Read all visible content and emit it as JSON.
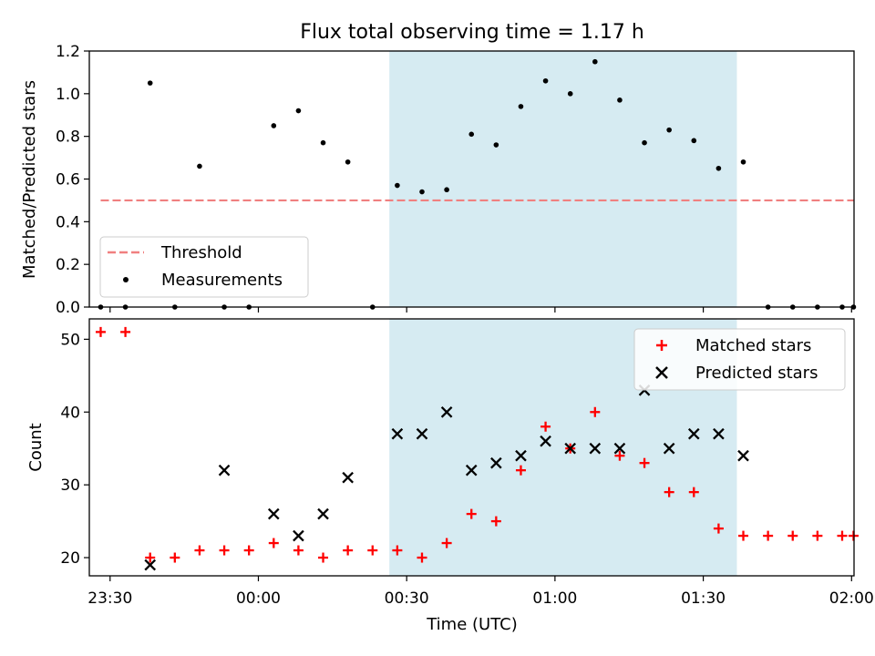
{
  "figure": {
    "title": "Flux total observing time = 1.17 h",
    "xlabel": "Time (UTC)",
    "x_ticks": [
      "23:30",
      "00:00",
      "00:30",
      "01:00",
      "01:30",
      "02:00"
    ],
    "x_tick_minutes": [
      -30,
      0,
      30,
      60,
      90,
      120
    ],
    "x_range_minutes": [
      -34.2,
      120.5
    ],
    "shaded_span_minutes": [
      26.5,
      96.8
    ],
    "shade_color": "#add8e6"
  },
  "chart_data": [
    {
      "type": "scatter",
      "title": "Flux total observing time = 1.17 h",
      "ylabel": "Matched/Predicted stars",
      "ylim": [
        0,
        1.2
      ],
      "y_ticks": [
        "0.0",
        "0.2",
        "0.4",
        "0.6",
        "0.8",
        "1.0",
        "1.2"
      ],
      "y_tick_values": [
        0,
        0.2,
        0.4,
        0.6,
        0.8,
        1.0,
        1.2
      ],
      "legend_position": "lower-left",
      "threshold": {
        "name": "Threshold",
        "value": 0.5,
        "x_range_minutes": [
          -31.9,
          120.4
        ],
        "color": "#f08080",
        "style": "dashed"
      },
      "series": [
        {
          "name": "Measurements",
          "color": "#000000",
          "x_minutes": [
            -31.9,
            -26.9,
            -21.9,
            -16.9,
            -11.9,
            -6.9,
            -1.9,
            3.1,
            8.1,
            13.1,
            18.1,
            23.1,
            28.1,
            33.1,
            38.1,
            43.1,
            48.1,
            53.1,
            58.1,
            63.1,
            68.1,
            73.1,
            78.1,
            83.1,
            88.1,
            93.1,
            98.1,
            103.1,
            108.1,
            113.1,
            118.1,
            120.4
          ],
          "y": [
            0,
            0,
            1.05,
            0,
            0.66,
            0,
            0,
            0.85,
            0.92,
            0.77,
            0.68,
            0,
            0.57,
            0.54,
            0.55,
            0.81,
            0.76,
            0.94,
            1.06,
            1.0,
            1.15,
            0.97,
            0.77,
            0.83,
            0.78,
            0.65,
            0.68,
            0,
            0,
            0,
            0,
            0
          ]
        }
      ]
    },
    {
      "type": "scatter",
      "ylabel": "Count",
      "ylim": [
        17.5,
        52.8
      ],
      "y_ticks": [
        "20",
        "30",
        "40",
        "50"
      ],
      "y_tick_values": [
        20,
        30,
        40,
        50
      ],
      "legend_position": "upper-right",
      "series": [
        {
          "name": "Matched stars",
          "marker": "plus",
          "color": "#ff0000",
          "x_minutes": [
            -31.9,
            -26.9,
            -21.9,
            -16.9,
            -11.9,
            -6.9,
            -1.9,
            3.1,
            8.1,
            13.1,
            18.1,
            23.1,
            28.1,
            33.1,
            38.1,
            43.1,
            48.1,
            53.1,
            58.1,
            63.1,
            68.1,
            73.1,
            78.1,
            83.1,
            88.1,
            93.1,
            98.1,
            103.1,
            108.1,
            113.1,
            118.1,
            120.4
          ],
          "y": [
            51,
            51,
            20,
            20,
            21,
            21,
            21,
            22,
            21,
            20,
            21,
            21,
            21,
            20,
            22,
            26,
            25,
            32,
            38,
            35,
            40,
            34,
            33,
            29,
            29,
            24,
            23,
            23,
            23,
            23,
            23,
            23
          ]
        },
        {
          "name": "Predicted stars",
          "marker": "x",
          "color": "#000000",
          "x_minutes": [
            -21.9,
            -6.9,
            3.1,
            8.1,
            13.1,
            18.1,
            28.1,
            33.1,
            38.1,
            43.1,
            48.1,
            53.1,
            58.1,
            63.1,
            68.1,
            73.1,
            78.1,
            83.1,
            88.1,
            93.1,
            98.1
          ],
          "y": [
            19,
            32,
            26,
            23,
            26,
            31,
            37,
            37,
            40,
            32,
            33,
            34,
            36,
            35,
            35,
            35,
            43,
            35,
            37,
            37,
            34
          ]
        }
      ]
    }
  ]
}
